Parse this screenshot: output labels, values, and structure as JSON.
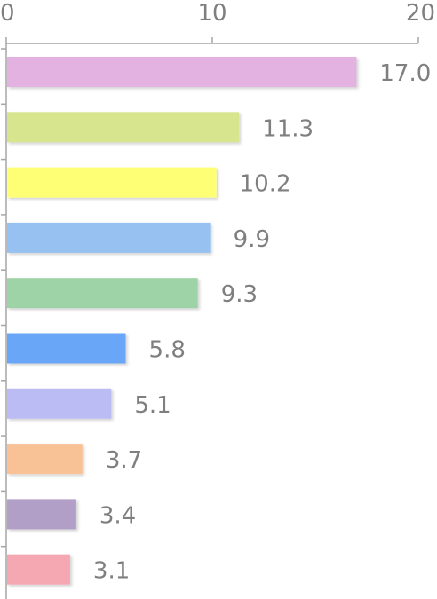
{
  "chart_data": {
    "type": "bar",
    "orientation": "horizontal",
    "categories": [
      "",
      "",
      "",
      "",
      "",
      "",
      "",
      "",
      "",
      ""
    ],
    "values": [
      17.0,
      11.3,
      10.2,
      9.9,
      9.3,
      5.8,
      5.1,
      3.7,
      3.4,
      3.1
    ],
    "value_labels": [
      "17.0",
      "11.3",
      "10.2",
      "9.9",
      "9.3",
      "5.8",
      "5.1",
      "3.7",
      "3.4",
      "3.1"
    ],
    "colors": [
      "#e4b2e0",
      "#d8e58f",
      "#ffff75",
      "#96c1f0",
      "#9dd3a6",
      "#6aa6f8",
      "#bcbcf4",
      "#f8c196",
      "#b19fc7",
      "#f5a8b1"
    ],
    "x_ticks": [
      "0",
      "10",
      "20"
    ],
    "xlim": [
      0,
      20
    ],
    "axis_position": "top",
    "grid": false,
    "title": "",
    "xlabel": "",
    "ylabel": ""
  }
}
